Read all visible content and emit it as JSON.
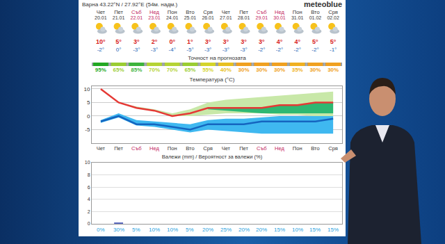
{
  "header": {
    "location": "Варна",
    "coordinates": "43.22°N / 27.92°E (54м. надм.)",
    "brand": "meteoblue"
  },
  "days": {
    "labels": [
      "Чет",
      "Пет",
      "Съб",
      "Нед",
      "Пон",
      "Вто",
      "Сря",
      "Чет",
      "Пет",
      "Съб",
      "Нед",
      "Пон",
      "Вто",
      "Сря"
    ],
    "dates": [
      "20.01",
      "21.01",
      "22.01",
      "23.01",
      "24.01",
      "25.01",
      "26.01",
      "27.01",
      "28.01",
      "29.01",
      "30.01",
      "31.01",
      "01.02",
      "02.02"
    ],
    "colors": [
      "#333333",
      "#333333",
      "#c2185b",
      "#c2185b",
      "#333333",
      "#333333",
      "#333333",
      "#333333",
      "#333333",
      "#c2185b",
      "#c2185b",
      "#333333",
      "#333333",
      "#333333"
    ]
  },
  "temperatures": {
    "max": {
      "values": [
        10,
        5,
        3,
        2,
        0,
        1,
        3,
        3,
        3,
        3,
        4,
        4,
        5,
        5
      ],
      "value_labels": [
        "10°",
        "5°",
        "3°",
        "2°",
        "0°",
        "1°",
        "3°",
        "3°",
        "3°",
        "3°",
        "4°",
        "4°",
        "5°",
        "5°"
      ],
      "color": "#d81b1b"
    },
    "min": {
      "values": [
        -2,
        0,
        -3,
        -3,
        -4,
        -5,
        -3,
        -3,
        -3,
        -2,
        -2,
        -2,
        -2,
        -1
      ],
      "value_labels": [
        "-2°",
        "0°",
        "-3°",
        "-3°",
        "-4°",
        "-5°",
        "-3°",
        "-3°",
        "-3°",
        "-2°",
        "-2°",
        "-2°",
        "-2°",
        "-1°"
      ],
      "color": "#1a5fb4"
    }
  },
  "accuracy": {
    "title": "Точност на прогнозата",
    "values": [
      95,
      65,
      85,
      70,
      70,
      65,
      55,
      40,
      30,
      30,
      30,
      35,
      30,
      30
    ],
    "value_labels": [
      "95%",
      "65%",
      "85%",
      "70%",
      "70%",
      "65%",
      "55%",
      "40%",
      "30%",
      "30%",
      "30%",
      "35%",
      "30%",
      "30%"
    ],
    "colors": [
      "#22a822",
      "#9acd32",
      "#3cb43c",
      "#b5d334",
      "#b5d334",
      "#9acd32",
      "#d4d42a",
      "#e8c020",
      "#f0a020",
      "#f0a020",
      "#f0a020",
      "#f0b020",
      "#f0a020",
      "#f0a020"
    ]
  },
  "chart_data": [
    {
      "type": "line",
      "title": "Температура (°C)",
      "categories": [
        "Чет",
        "Пет",
        "Съб",
        "Нед",
        "Пон",
        "Вто",
        "Сря",
        "Чет",
        "Пет",
        "Съб",
        "Нед",
        "Пон",
        "Вто",
        "Сря"
      ],
      "ylim": [
        -10,
        11
      ],
      "yticks": [
        -5,
        0,
        5,
        10
      ],
      "grid": true,
      "series": [
        {
          "type": "band",
          "color": "#c8e8a8",
          "lower": [
            10,
            5,
            3,
            2,
            0,
            0,
            0.5,
            1,
            1,
            1,
            0.5,
            0.5,
            0,
            0
          ],
          "upper": [
            10,
            5,
            3.5,
            2.5,
            1,
            2.5,
            5,
            6,
            6.5,
            7,
            7.5,
            8,
            8.5,
            9
          ]
        },
        {
          "type": "band",
          "color": "#2eb872",
          "lower": [
            null,
            null,
            null,
            null,
            null,
            null,
            2.5,
            2,
            1.5,
            1,
            1,
            1,
            1,
            1
          ],
          "upper": [
            null,
            null,
            null,
            null,
            null,
            null,
            3,
            3,
            3,
            3,
            4,
            4,
            5,
            5
          ]
        },
        {
          "type": "band",
          "color": "#3fb8f0",
          "lower": [
            -2.5,
            -0.5,
            -3.5,
            -4,
            -5,
            -6,
            -5,
            -5.5,
            -6,
            -6.5,
            -6.5,
            -6.5,
            -6.5,
            -6.5
          ],
          "upper": [
            -1.5,
            1,
            -1.5,
            -2,
            -2.5,
            -3,
            -1.5,
            -1,
            -1,
            -0.5,
            0,
            0,
            0,
            0
          ]
        },
        {
          "type": "line",
          "color": "#e53935",
          "values": [
            10,
            5,
            3,
            2,
            0,
            1,
            3,
            3,
            3,
            3,
            4,
            4,
            5,
            5
          ]
        },
        {
          "type": "line",
          "color": "#1565c0",
          "values": [
            -2,
            0,
            -3,
            -3,
            -4,
            -5,
            -3,
            -3,
            -3,
            -2,
            -2,
            -2,
            -2,
            -1
          ]
        }
      ]
    },
    {
      "type": "bar",
      "title": "Валежи (mm) / Вероятност за валежи (%)",
      "categories": [
        null,
        null,
        null,
        null,
        null,
        null,
        null,
        null,
        null,
        null,
        null,
        null,
        null,
        null
      ],
      "ylim": [
        0,
        10
      ],
      "yticks": [
        0,
        2,
        4,
        6,
        8,
        10
      ],
      "grid": true,
      "series": [
        {
          "color": "#5c6bc0",
          "values": [
            0,
            0.2,
            0,
            0,
            0,
            0,
            0,
            0,
            0,
            0,
            0,
            0,
            0,
            0
          ]
        }
      ],
      "probability": {
        "values": [
          0,
          30,
          5,
          10,
          10,
          5,
          20,
          25,
          20,
          20,
          15,
          10,
          15,
          15
        ],
        "value_labels": [
          "0%",
          "30%",
          "5%",
          "10%",
          "10%",
          "5%",
          "20%",
          "25%",
          "20%",
          "20%",
          "15%",
          "10%",
          "15%",
          "15%"
        ],
        "color": "#1e9fe0"
      }
    }
  ]
}
